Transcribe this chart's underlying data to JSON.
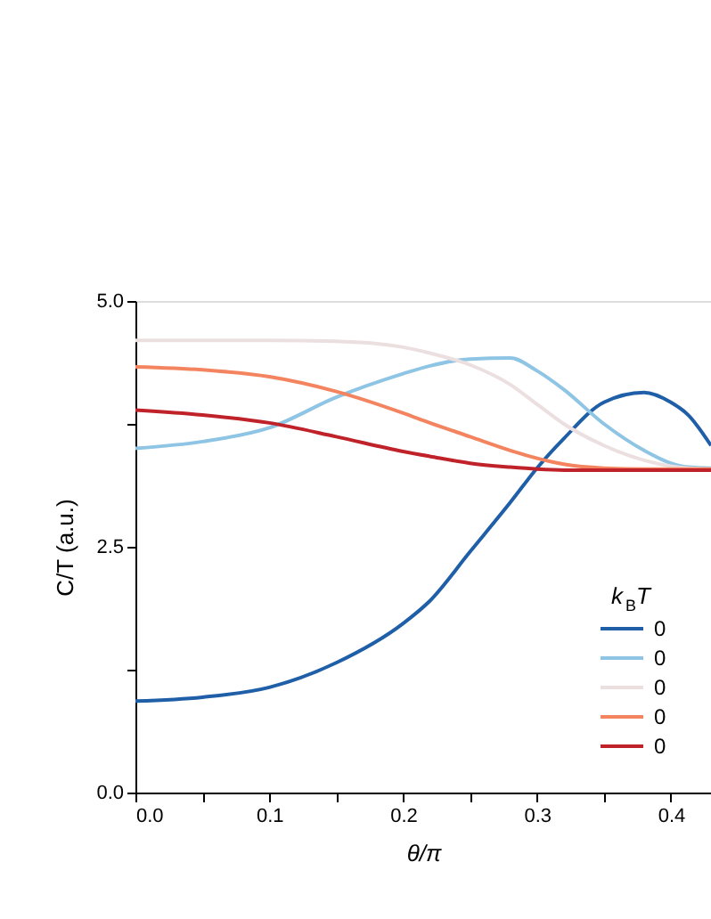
{
  "chart_data": {
    "type": "line",
    "xlabel": "θ/π",
    "ylabel": "C/T (a.u.)",
    "legend_title": "k$_{B}$T",
    "legend": "right",
    "grid": false,
    "line_style": "solid",
    "marker": "none",
    "xlim": [
      0,
      0.43
    ],
    "xticks": [
      {
        "value": 0,
        "label": "0.0"
      },
      {
        "value": 0.05,
        "label": null
      },
      {
        "value": 0.1,
        "label": "0.1"
      },
      {
        "value": 0.15,
        "label": null
      },
      {
        "value": 0.2,
        "label": "0.2"
      },
      {
        "value": 0.25,
        "label": null
      },
      {
        "value": 0.3,
        "label": "0.3"
      },
      {
        "value": 0.35,
        "label": null
      },
      {
        "value": 0.4,
        "label": "0.4"
      }
    ],
    "ylim": [
      0,
      5
    ],
    "yticks": [
      {
        "value": 0,
        "label": "0.0"
      },
      {
        "value": 1.25,
        "label": null
      },
      {
        "value": 2.5,
        "label": "2.5"
      },
      {
        "value": 3.75,
        "label": null
      },
      {
        "value": 5,
        "label": "5.0"
      }
    ],
    "x": [
      0,
      0.05,
      0.1,
      0.15,
      0.2,
      0.22,
      0.25,
      0.28,
      0.3,
      0.32,
      0.35,
      0.38,
      0.4,
      0.413,
      0.43
    ],
    "series": [
      {
        "name": "0",
        "color": "#1f5fa8",
        "values": [
          0.93,
          0.97,
          1.07,
          1.32,
          1.72,
          1.95,
          2.45,
          2.95,
          3.3,
          3.6,
          3.97,
          4.07,
          3.97,
          3.84,
          3.53
        ]
      },
      {
        "name": "0",
        "color": "#8ec4e4",
        "values": [
          3.5,
          3.57,
          3.71,
          4.02,
          4.26,
          4.34,
          4.41,
          4.42,
          4.29,
          4.1,
          3.75,
          3.48,
          3.35,
          3.31,
          3.3
        ]
      },
      {
        "name": "0",
        "color": "#ecdfe0",
        "values": [
          4.6,
          4.6,
          4.6,
          4.59,
          4.53,
          4.47,
          4.35,
          4.15,
          3.95,
          3.75,
          3.53,
          3.38,
          3.32,
          3.3,
          3.29
        ]
      },
      {
        "name": "0",
        "color": "#f4845f",
        "values": [
          4.33,
          4.3,
          4.23,
          4.08,
          3.86,
          3.76,
          3.62,
          3.48,
          3.4,
          3.34,
          3.3,
          3.29,
          3.29,
          3.29,
          3.29
        ]
      },
      {
        "name": "0",
        "color": "#c0222a",
        "values": [
          3.89,
          3.84,
          3.76,
          3.62,
          3.47,
          3.42,
          3.35,
          3.31,
          3.29,
          3.28,
          3.28,
          3.28,
          3.28,
          3.28,
          3.28
        ]
      }
    ]
  }
}
